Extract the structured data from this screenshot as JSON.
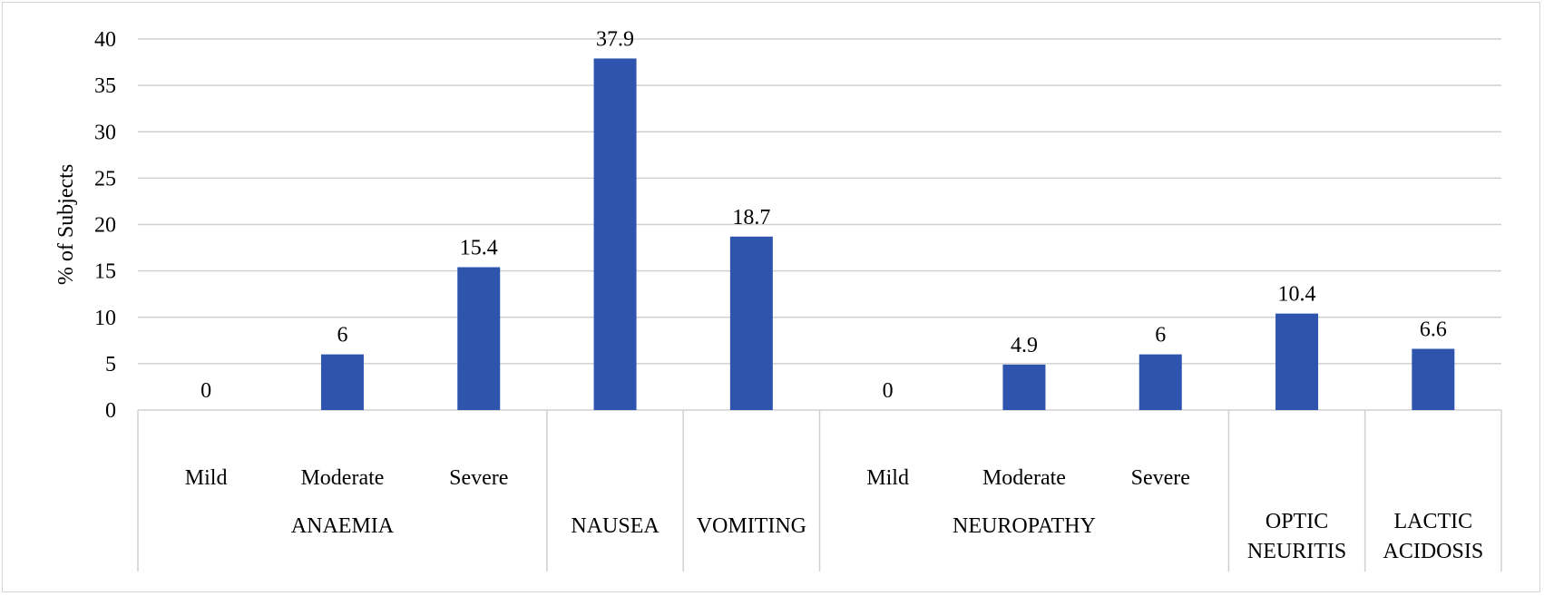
{
  "chart_data": {
    "type": "bar",
    "ylabel": "% of Subjects",
    "ylim": [
      0,
      40
    ],
    "yticks": [
      0,
      5,
      10,
      15,
      20,
      25,
      30,
      35,
      40
    ],
    "grid": true,
    "bar_color": "#2e54ad",
    "categories": [
      "Mild",
      "Moderate",
      "Severe",
      "",
      "",
      "Mild",
      "Moderate",
      "Severe",
      "",
      ""
    ],
    "groups": [
      {
        "name": "ANAEMIA",
        "lines": [
          "ANAEMIA"
        ],
        "span": [
          0,
          2
        ]
      },
      {
        "name": "NAUSEA",
        "lines": [
          "NAUSEA"
        ],
        "span": [
          3,
          3
        ]
      },
      {
        "name": "VOMITING",
        "lines": [
          "VOMITING"
        ],
        "span": [
          4,
          4
        ]
      },
      {
        "name": "NEUROPATHY",
        "lines": [
          "NEUROPATHY"
        ],
        "span": [
          5,
          7
        ]
      },
      {
        "name": "OPTIC NEURITIS",
        "lines": [
          "OPTIC",
          "NEURITIS"
        ],
        "span": [
          8,
          8
        ]
      },
      {
        "name": "LACTIC ACIDOSIS",
        "lines": [
          "LACTIC",
          "ACIDOSIS"
        ],
        "span": [
          9,
          9
        ]
      }
    ],
    "values": [
      0,
      6,
      15.4,
      37.9,
      18.7,
      0,
      4.9,
      6,
      10.4,
      6.6
    ],
    "data_labels": [
      "0",
      "6",
      "15.4",
      "37.9",
      "18.7",
      "0",
      "4.9",
      "6",
      "10.4",
      "6.6"
    ]
  }
}
